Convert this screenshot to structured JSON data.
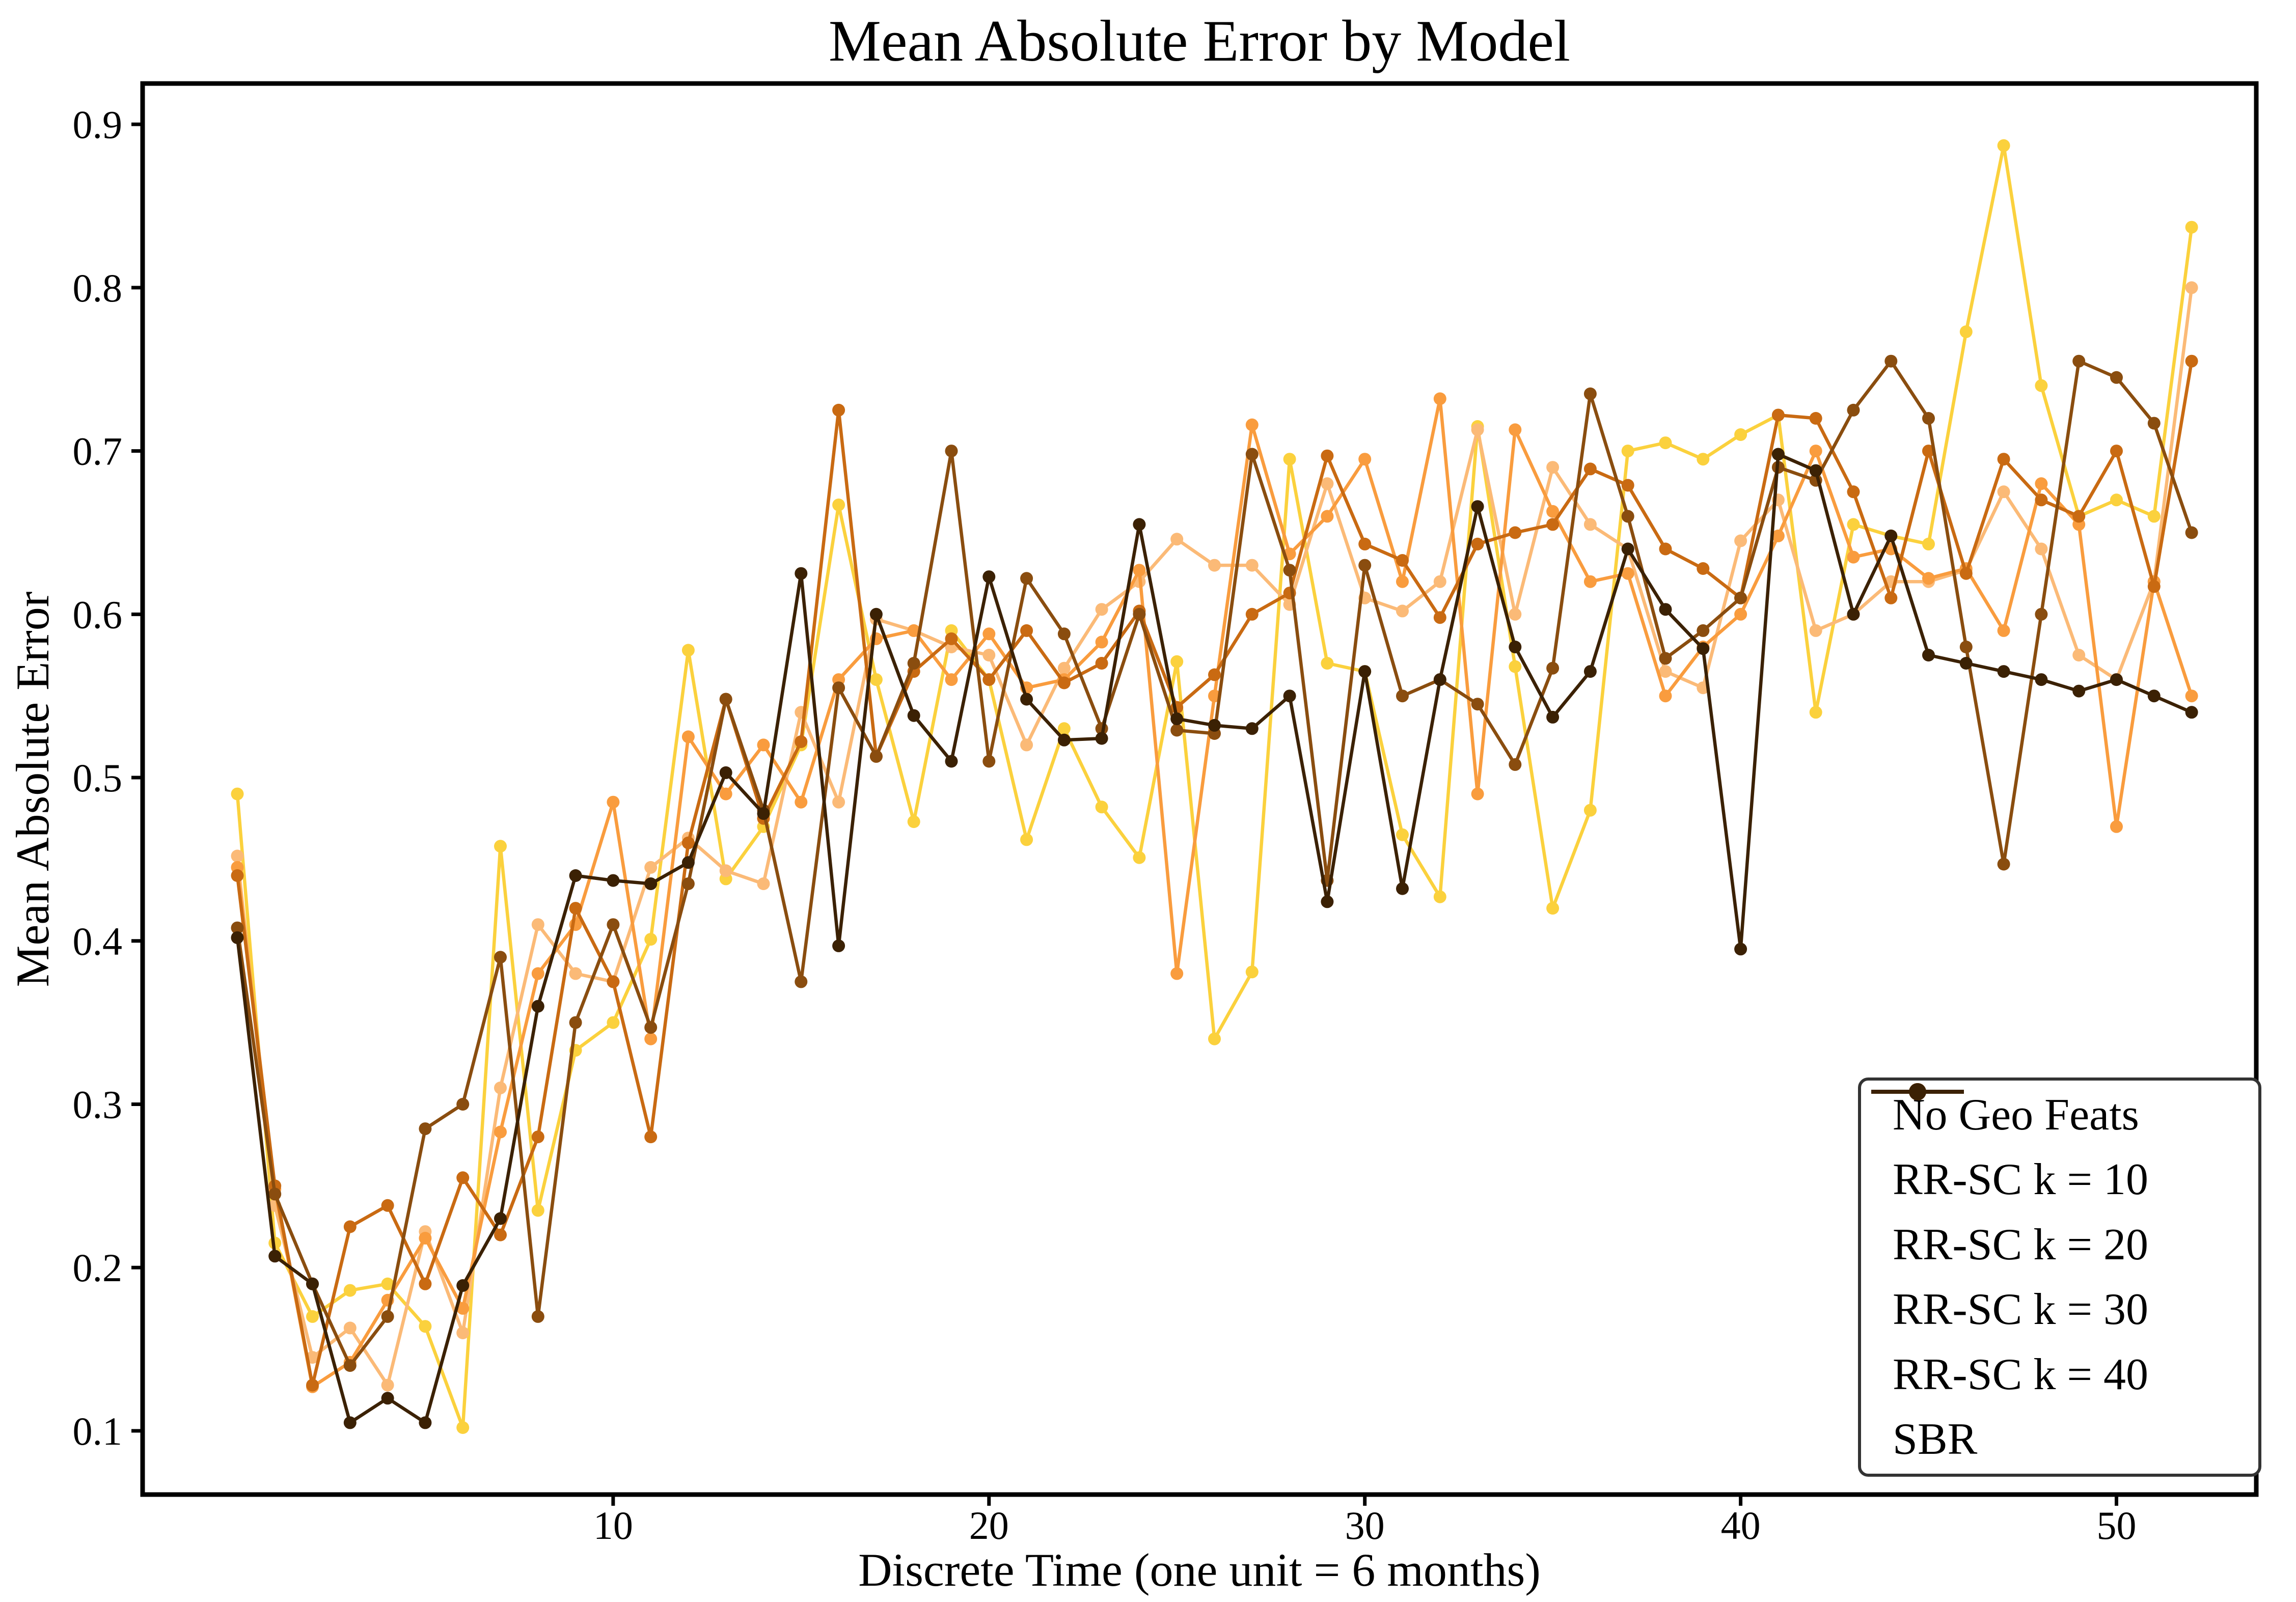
{
  "chart_data": {
    "type": "line",
    "title": "Mean Absolute Error by Model",
    "xlabel": "Discrete Time (one unit = 6 months)",
    "ylabel": "Mean Absolute Error",
    "legend_position": "lower right",
    "grid": false,
    "xlim": [
      -2.52,
      53.72
    ],
    "ylim": [
      0.061,
      0.925
    ],
    "xticks": {
      "values": [
        10,
        20,
        30,
        40,
        50
      ],
      "labels": [
        "10",
        "20",
        "30",
        "40",
        "50"
      ]
    },
    "yticks": {
      "values": [
        0.1,
        0.2,
        0.3,
        0.4,
        0.5,
        0.6,
        0.7,
        0.8,
        0.9
      ],
      "labels": [
        "0.1",
        "0.2",
        "0.3",
        "0.4",
        "0.5",
        "0.6",
        "0.7",
        "0.8",
        "0.9"
      ]
    },
    "x": [
      0,
      1,
      2,
      3,
      4,
      5,
      6,
      7,
      8,
      9,
      10,
      11,
      12,
      13,
      14,
      15,
      16,
      17,
      18,
      19,
      20,
      21,
      22,
      23,
      24,
      25,
      26,
      27,
      28,
      29,
      30,
      31,
      32,
      33,
      34,
      35,
      36,
      37,
      38,
      39,
      40,
      41,
      42,
      43,
      44,
      45,
      46,
      47,
      48,
      49,
      50,
      51,
      52
    ],
    "series": [
      {
        "name": "No Geo Feats",
        "color": "#FBD13D",
        "values": [
          0.49,
          0.215,
          0.17,
          0.186,
          0.19,
          0.164,
          0.102,
          0.458,
          0.235,
          0.333,
          0.35,
          0.401,
          0.578,
          0.438,
          0.47,
          0.52,
          0.667,
          0.56,
          0.473,
          0.59,
          0.56,
          0.462,
          0.53,
          0.482,
          0.451,
          0.571,
          0.34,
          0.381,
          0.695,
          0.57,
          0.565,
          0.465,
          0.427,
          0.715,
          0.568,
          0.42,
          0.48,
          0.7,
          0.705,
          0.695,
          0.71,
          0.722,
          0.54,
          0.655,
          0.648,
          0.643,
          0.773,
          0.887,
          0.74,
          0.66,
          0.67,
          0.66,
          0.837
        ]
      },
      {
        "name": "RR-SC k = 10",
        "color": "#FBBA77",
        "values": [
          0.452,
          0.238,
          0.145,
          0.163,
          0.128,
          0.222,
          0.16,
          0.31,
          0.41,
          0.38,
          0.375,
          0.445,
          0.463,
          0.443,
          0.435,
          0.54,
          0.485,
          0.597,
          0.59,
          0.58,
          0.575,
          0.52,
          0.567,
          0.603,
          0.62,
          0.646,
          0.63,
          0.63,
          0.606,
          0.68,
          0.61,
          0.602,
          0.62,
          0.713,
          0.6,
          0.69,
          0.655,
          0.64,
          0.565,
          0.555,
          0.645,
          0.67,
          0.59,
          0.6,
          0.62,
          0.62,
          0.627,
          0.675,
          0.64,
          0.575,
          0.56,
          0.62,
          0.8
        ]
      },
      {
        "name": "RR-SC k = 20",
        "color": "#F99C3E",
        "values": [
          0.445,
          0.248,
          0.127,
          0.142,
          0.18,
          0.218,
          0.175,
          0.283,
          0.38,
          0.41,
          0.485,
          0.34,
          0.525,
          0.49,
          0.52,
          0.485,
          0.56,
          0.585,
          0.59,
          0.56,
          0.588,
          0.555,
          0.56,
          0.583,
          0.627,
          0.38,
          0.55,
          0.716,
          0.637,
          0.66,
          0.695,
          0.62,
          0.732,
          0.49,
          0.713,
          0.663,
          0.62,
          0.625,
          0.55,
          0.58,
          0.6,
          0.648,
          0.7,
          0.635,
          0.64,
          0.622,
          0.628,
          0.59,
          0.68,
          0.655,
          0.47,
          0.62,
          0.55
        ]
      },
      {
        "name": "RR-SC k = 30",
        "color": "#C96A12",
        "values": [
          0.44,
          0.25,
          0.128,
          0.225,
          0.238,
          0.19,
          0.255,
          0.22,
          0.28,
          0.42,
          0.375,
          0.28,
          0.46,
          0.548,
          0.475,
          0.522,
          0.725,
          0.513,
          0.565,
          0.585,
          0.56,
          0.59,
          0.558,
          0.57,
          0.602,
          0.543,
          0.563,
          0.6,
          0.613,
          0.697,
          0.643,
          0.633,
          0.598,
          0.643,
          0.65,
          0.655,
          0.689,
          0.679,
          0.64,
          0.628,
          0.61,
          0.722,
          0.72,
          0.675,
          0.61,
          0.7,
          0.625,
          0.695,
          0.67,
          0.66,
          0.7,
          0.617,
          0.755
        ]
      },
      {
        "name": "RR-SC k = 40",
        "color": "#8A4D0F",
        "values": [
          0.408,
          0.245,
          0.19,
          0.14,
          0.17,
          0.285,
          0.3,
          0.39,
          0.17,
          0.35,
          0.41,
          0.347,
          0.435,
          0.548,
          0.48,
          0.375,
          0.555,
          0.513,
          0.57,
          0.7,
          0.51,
          0.622,
          0.588,
          0.53,
          0.6,
          0.529,
          0.527,
          0.698,
          0.627,
          0.437,
          0.63,
          0.55,
          0.56,
          0.545,
          0.508,
          0.567,
          0.735,
          0.66,
          0.573,
          0.59,
          0.61,
          0.69,
          0.682,
          0.725,
          0.755,
          0.72,
          0.58,
          0.447,
          0.6,
          0.755,
          0.745,
          0.717,
          0.65
        ]
      },
      {
        "name": "SBR",
        "color": "#3B2104",
        "values": [
          0.402,
          0.207,
          0.19,
          0.105,
          0.12,
          0.105,
          0.189,
          0.23,
          0.36,
          0.44,
          0.437,
          0.435,
          0.448,
          0.503,
          0.478,
          0.625,
          0.397,
          0.6,
          0.538,
          0.51,
          0.623,
          0.548,
          0.523,
          0.524,
          0.655,
          0.536,
          0.532,
          0.53,
          0.55,
          0.424,
          0.565,
          0.432,
          0.56,
          0.666,
          0.58,
          0.537,
          0.565,
          0.64,
          0.603,
          0.579,
          0.395,
          0.698,
          0.688,
          0.6,
          0.648,
          0.575,
          0.57,
          0.565,
          0.56,
          0.553,
          0.56,
          0.55,
          0.54
        ]
      }
    ]
  }
}
